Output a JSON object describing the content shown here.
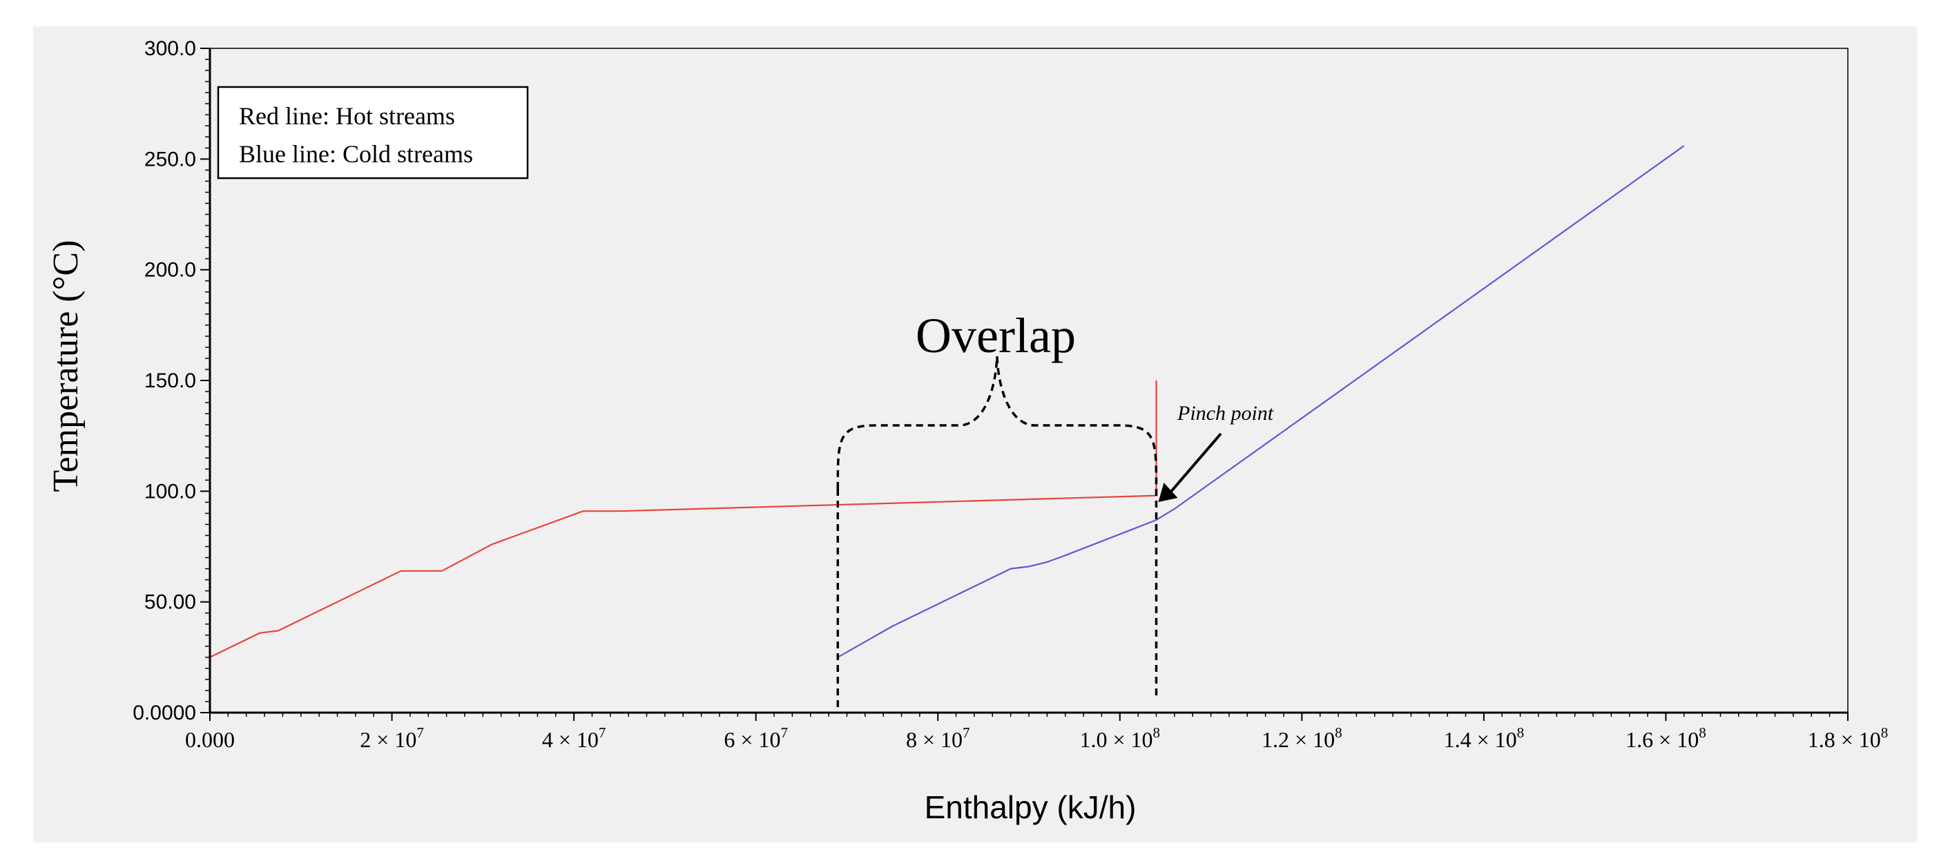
{
  "chart_data": {
    "type": "line",
    "xlabel": "Enthalpy (kJ/h)",
    "ylabel": "Temperature  (°C)",
    "xlim": [
      0,
      180000000
    ],
    "ylim": [
      0,
      300
    ],
    "grid": false,
    "x_ticks": [
      {
        "value": 0,
        "label": "0.000"
      },
      {
        "value": 20000000,
        "label": "2 × 10",
        "exp": "7"
      },
      {
        "value": 40000000,
        "label": "4 × 10",
        "exp": "7"
      },
      {
        "value": 60000000,
        "label": "6 × 10",
        "exp": "7"
      },
      {
        "value": 80000000,
        "label": "8 × 10",
        "exp": "7"
      },
      {
        "value": 100000000,
        "label": "1.0 × 10",
        "exp": "8"
      },
      {
        "value": 120000000,
        "label": "1.2 × 10",
        "exp": "8"
      },
      {
        "value": 140000000,
        "label": "1.4 × 10",
        "exp": "8"
      },
      {
        "value": 160000000,
        "label": "1.6 × 10",
        "exp": "8"
      },
      {
        "value": 180000000,
        "label": "1.8 × 10",
        "exp": "8"
      }
    ],
    "y_ticks": [
      {
        "value": 0,
        "label": "0.0000"
      },
      {
        "value": 50,
        "label": "50.00"
      },
      {
        "value": 100,
        "label": "100.0"
      },
      {
        "value": 150,
        "label": "150.0"
      },
      {
        "value": 200,
        "label": "200.0"
      },
      {
        "value": 250,
        "label": "250.0"
      },
      {
        "value": 300,
        "label": "300.0"
      }
    ],
    "series": [
      {
        "color": "#e8443a",
        "points": [
          [
            0,
            25
          ],
          [
            5500000,
            36
          ],
          [
            7500000,
            37
          ],
          [
            21000000,
            64
          ],
          [
            25500000,
            64
          ],
          [
            31000000,
            76
          ],
          [
            41000000,
            91
          ],
          [
            45000000,
            91
          ],
          [
            104000000,
            98
          ],
          [
            104000000,
            150
          ]
        ]
      },
      {
        "color": "#5b5bd6",
        "points": [
          [
            69000000,
            25
          ],
          [
            75000000,
            39
          ],
          [
            88000000,
            65
          ],
          [
            90000000,
            66
          ],
          [
            92000000,
            68
          ],
          [
            94000000,
            71
          ],
          [
            104000000,
            87
          ],
          [
            106000000,
            92
          ],
          [
            162000000,
            256
          ]
        ]
      }
    ],
    "legend": {
      "placement": "top-left",
      "lines": [
        "Red line: Hot streams",
        "Blue line: Cold streams"
      ]
    },
    "annotations": {
      "overlap_label": "Overlap",
      "overlap_range": [
        69000000,
        104000000
      ],
      "pinch_label": "Pinch point",
      "pinch_point": [
        104000000,
        97
      ]
    }
  }
}
